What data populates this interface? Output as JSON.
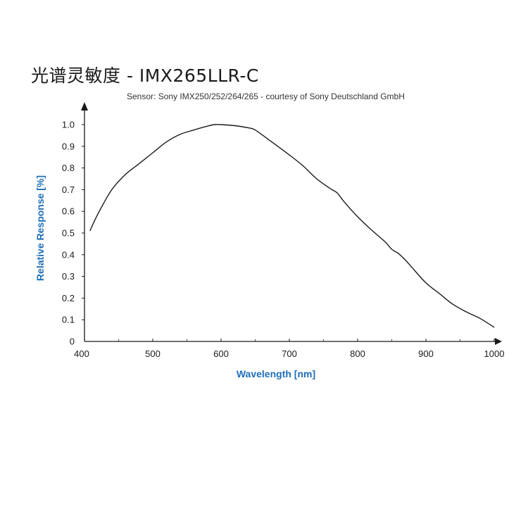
{
  "title": "光谱灵敏度 - IMX265LLR-C",
  "subtitle": "Sensor: Sony IMX250/252/264/265 - courtesy of Sony Deutschland GmbH",
  "colors": {
    "axis_title": "#1f6fb8",
    "curve": "#1a1a1a",
    "axis": "#1a1a1a"
  },
  "chart_data": {
    "type": "line",
    "title": "光谱灵敏度 - IMX265LLR-C",
    "subtitle": "Sensor: Sony IMX250/252/264/265 - courtesy of Sony Deutschland GmbH",
    "xlabel": "Wavelength [nm]",
    "ylabel": "Relative Response [%]",
    "xlim": [
      400,
      1000
    ],
    "ylim": [
      0,
      1.0
    ],
    "x_ticks": [
      400,
      500,
      600,
      700,
      800,
      900,
      1000
    ],
    "y_ticks": [
      0,
      0.1,
      0.2,
      0.3,
      0.4,
      0.5,
      0.6,
      0.7,
      0.8,
      0.9,
      1.0
    ],
    "y_tick_labels": [
      "0",
      "0.1",
      "0.2",
      "0.3",
      "0.4",
      "0.5",
      "0.6",
      "0.7",
      "0.8",
      "0.9",
      "1.0"
    ],
    "grid": false,
    "series": [
      {
        "x": [
          408,
          420,
          440,
          460,
          480,
          500,
          520,
          540,
          560,
          580,
          590,
          600,
          620,
          640,
          650,
          670,
          700,
          720,
          740,
          760,
          770,
          780,
          800,
          820,
          840,
          850,
          860,
          870,
          880,
          900,
          920,
          940,
          960,
          970,
          980,
          1000
        ],
        "values": [
          0.51,
          0.59,
          0.7,
          0.77,
          0.82,
          0.87,
          0.92,
          0.955,
          0.975,
          0.993,
          1.0,
          1.0,
          0.995,
          0.985,
          0.975,
          0.93,
          0.86,
          0.81,
          0.75,
          0.705,
          0.685,
          0.645,
          0.575,
          0.515,
          0.46,
          0.425,
          0.405,
          0.375,
          0.34,
          0.27,
          0.22,
          0.17,
          0.135,
          0.12,
          0.105,
          0.065
        ]
      }
    ]
  }
}
